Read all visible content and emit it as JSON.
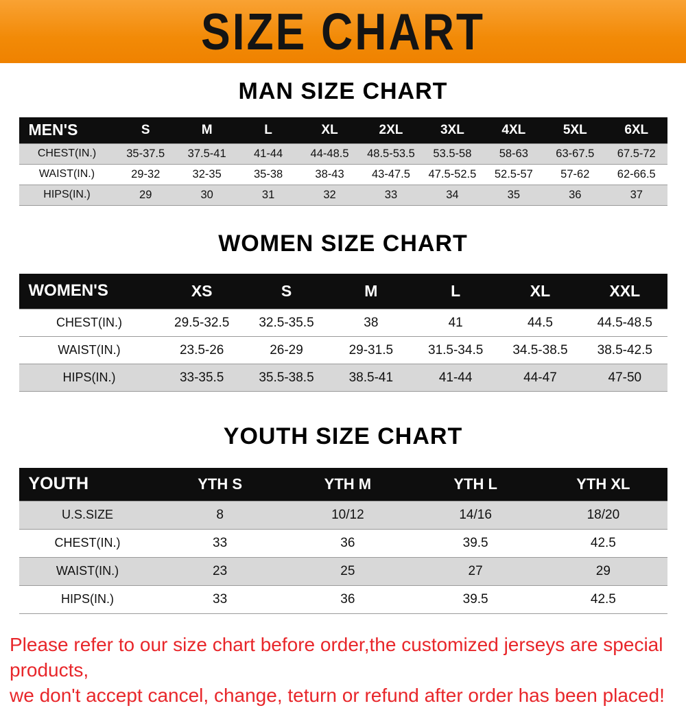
{
  "banner": {
    "title": "SIZE CHART"
  },
  "accent_colors": {
    "banner_orange": "#f28a07",
    "table_header_black": "#0e0e0e",
    "row_gray": "#d8d8d8",
    "disclaimer_red": "#e8262a"
  },
  "sections": [
    {
      "heading": "MAN SIZE CHART",
      "table": {
        "header": [
          "MEN'S",
          "S",
          "M",
          "L",
          "XL",
          "2XL",
          "3XL",
          "4XL",
          "5XL",
          "6XL"
        ],
        "rows": [
          {
            "label": "CHEST(IN.)",
            "shaded": true,
            "values": [
              "35-37.5",
              "37.5-41",
              "41-44",
              "44-48.5",
              "48.5-53.5",
              "53.5-58",
              "58-63",
              "63-67.5",
              "67.5-72"
            ]
          },
          {
            "label": "WAIST(IN.)",
            "shaded": false,
            "values": [
              "29-32",
              "32-35",
              "35-38",
              "38-43",
              "43-47.5",
              "47.5-52.5",
              "52.5-57",
              "57-62",
              "62-66.5"
            ]
          },
          {
            "label": "HIPS(IN.)",
            "shaded": true,
            "values": [
              "29",
              "30",
              "31",
              "32",
              "33",
              "34",
              "35",
              "36",
              "37"
            ]
          }
        ]
      }
    },
    {
      "heading": "WOMEN SIZE CHART",
      "table": {
        "header": [
          "WOMEN'S",
          "XS",
          "S",
          "M",
          "L",
          "XL",
          "XXL"
        ],
        "rows": [
          {
            "label": "CHEST(IN.)",
            "shaded": false,
            "values": [
              "29.5-32.5",
              "32.5-35.5",
              "38",
              "41",
              "44.5",
              "44.5-48.5"
            ]
          },
          {
            "label": "WAIST(IN.)",
            "shaded": false,
            "values": [
              "23.5-26",
              "26-29",
              "29-31.5",
              "31.5-34.5",
              "34.5-38.5",
              "38.5-42.5"
            ]
          },
          {
            "label": "HIPS(IN.)",
            "shaded": true,
            "values": [
              "33-35.5",
              "35.5-38.5",
              "38.5-41",
              "41-44",
              "44-47",
              "47-50"
            ]
          }
        ]
      }
    },
    {
      "heading": "YOUTH SIZE CHART",
      "table": {
        "header": [
          "YOUTH",
          "YTH S",
          "YTH M",
          "YTH L",
          "YTH XL"
        ],
        "rows": [
          {
            "label": "U.S.SIZE",
            "shaded": true,
            "values": [
              "8",
              "10/12",
              "14/16",
              "18/20"
            ]
          },
          {
            "label": "CHEST(IN.)",
            "shaded": false,
            "values": [
              "33",
              "36",
              "39.5",
              "42.5"
            ]
          },
          {
            "label": "WAIST(IN.)",
            "shaded": true,
            "values": [
              "23",
              "25",
              "27",
              "29"
            ]
          },
          {
            "label": "HIPS(IN.)",
            "shaded": false,
            "values": [
              "33",
              "36",
              "39.5",
              "42.5"
            ]
          }
        ]
      }
    }
  ],
  "footer": {
    "line1": "Please refer to our size chart before order,the customized jerseys are special products,",
    "line2": "we don't accept cancel, change, teturn or refund after order has been placed!"
  }
}
